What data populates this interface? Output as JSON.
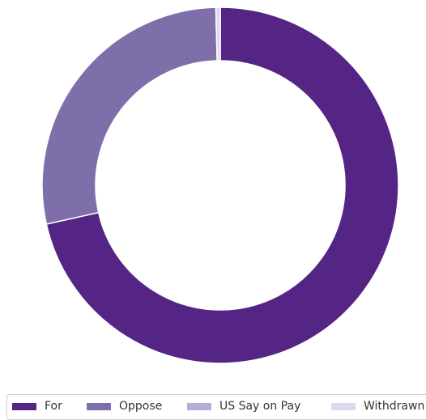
{
  "chart_data": {
    "type": "pie",
    "donut": true,
    "categories": [
      "For",
      "Oppose",
      "US Say on Pay",
      "Withdrawn"
    ],
    "values": [
      71.5,
      28.1,
      0.0,
      0.4
    ],
    "colors": [
      "#552586",
      "#7e6fab",
      "#b4aed6",
      "#dcd8ee"
    ],
    "legend_position": "bottom",
    "grid": false
  }
}
